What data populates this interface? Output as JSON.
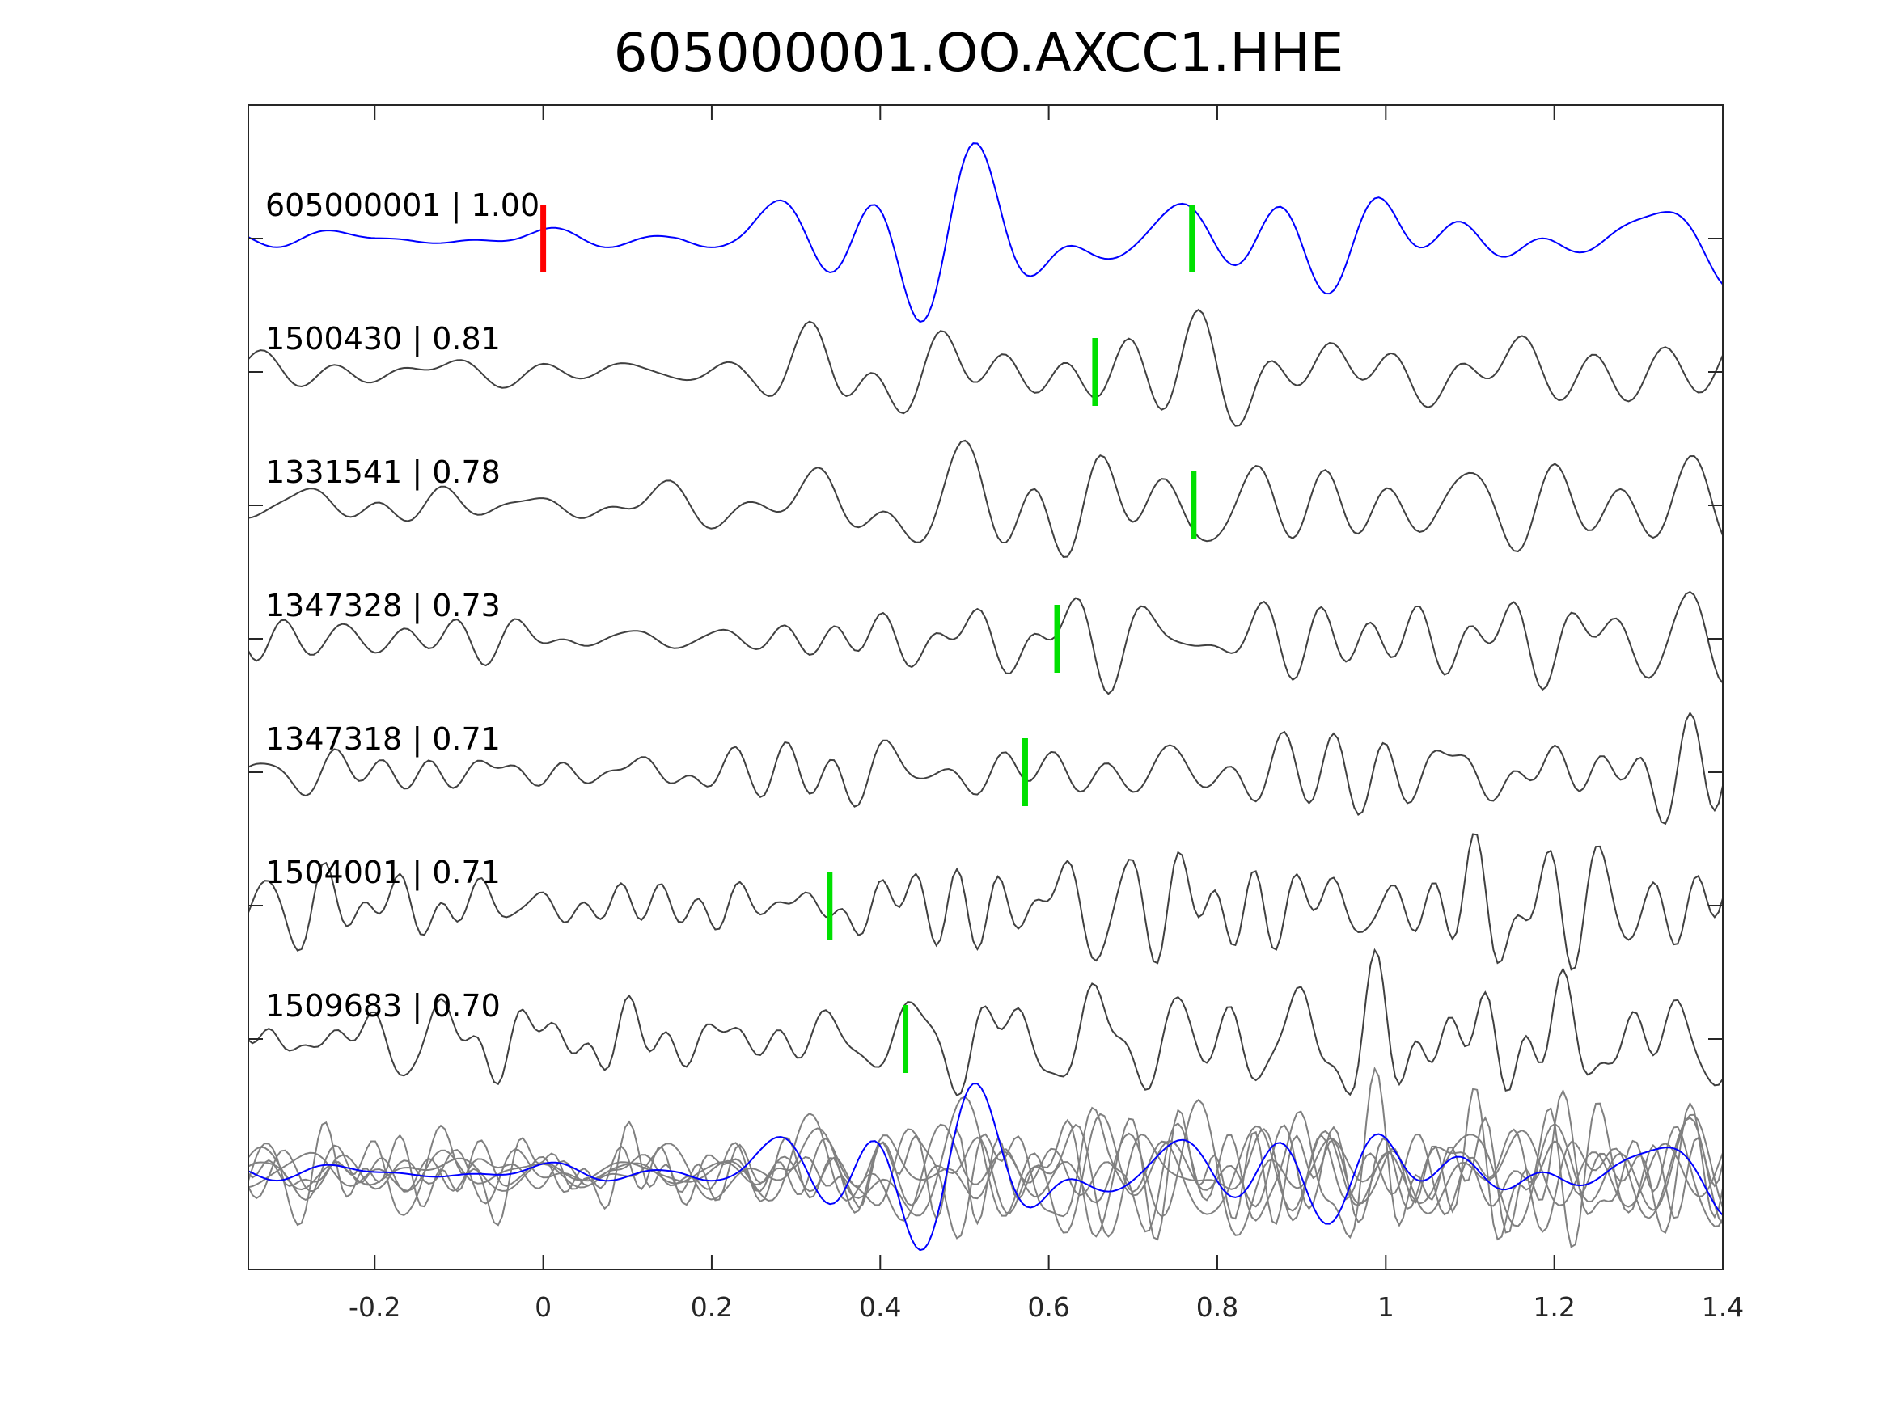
{
  "chart_data": {
    "type": "line",
    "title": "605000001.OO.AXCC1.HHE",
    "xlabel": "",
    "ylabel": "",
    "xlim": [
      -0.35,
      1.4
    ],
    "xticks": [
      -0.2,
      0,
      0.2,
      0.4,
      0.6,
      0.8,
      1,
      1.2,
      1.4
    ],
    "xtick_labels": [
      "-0.2",
      "0",
      "0.2",
      "0.4",
      "0.6",
      "0.8",
      "1",
      "1.2",
      "1.4"
    ],
    "grid": false,
    "traces": [
      {
        "id": "605000001",
        "cc": "1.00",
        "label": "605000001 | 1.00",
        "color": "#0000ff",
        "pick": 0.77,
        "ref_pick": 0.0
      },
      {
        "id": "1500430",
        "cc": "0.81",
        "label": "1500430 | 0.81",
        "color": "#404040",
        "pick": 0.655
      },
      {
        "id": "1331541",
        "cc": "0.78",
        "label": "1331541 | 0.78",
        "color": "#404040",
        "pick": 0.772
      },
      {
        "id": "1347328",
        "cc": "0.73",
        "label": "1347328 | 0.73",
        "color": "#404040",
        "pick": 0.61
      },
      {
        "id": "1347318",
        "cc": "0.71",
        "label": "1347318 | 0.71",
        "color": "#404040",
        "pick": 0.572
      },
      {
        "id": "1504001",
        "cc": "0.71",
        "label": "1504001 | 0.71",
        "color": "#404040",
        "pick": 0.34
      },
      {
        "id": "1509683",
        "cc": "0.70",
        "label": "1509683 | 0.70",
        "color": "#404040",
        "pick": 0.43
      }
    ],
    "overlay": {
      "template_color": "#0000ff",
      "others_color": "#808080"
    },
    "pick_colors": {
      "reference": "#ff0000",
      "detected": "#00e000"
    }
  }
}
